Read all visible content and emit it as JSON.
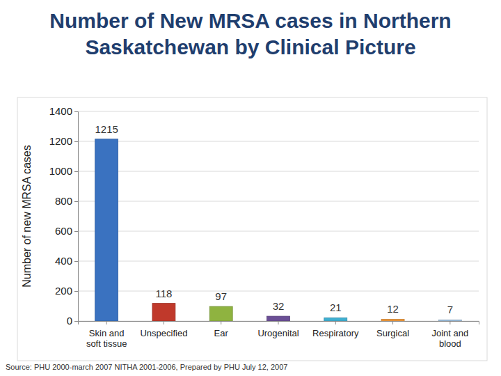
{
  "chart_data": {
    "type": "bar",
    "title": "Number of New MRSA cases in Northern Saskatchewan by Clinical Picture",
    "y_label": "Number of new MRSA cases",
    "categories": [
      "Skin and soft tissue",
      "Unspecified",
      "Ear",
      "Urogenital",
      "Respiratory",
      "Surgical",
      "Joint and blood"
    ],
    "values": [
      1215,
      118,
      97,
      32,
      21,
      12,
      7
    ],
    "colors": [
      "#3a72c0",
      "#c0392b",
      "#8fb340",
      "#6b4f96",
      "#3eaed0",
      "#f09a3c",
      "#9fc2e3"
    ],
    "ylim": [
      0,
      1400
    ],
    "yticks": [
      0,
      200,
      400,
      600,
      800,
      1000,
      1200,
      1400
    ],
    "grid": true,
    "data_labels": true,
    "annotations": [
      "Source: PHU 2000-march 2007 NITHA 2001-2006, Prepared by PHU July 12, 2007"
    ]
  }
}
